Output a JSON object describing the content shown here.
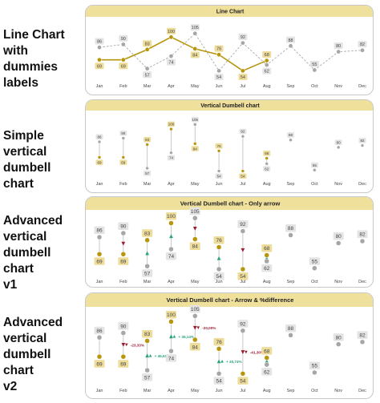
{
  "labels": [
    "Line Chart\nwith dummies\nlabels",
    "Simple vertical\ndumbell chart",
    "Advanced\nvertical\ndumbell chart\nv1",
    "Advanced\nvertical\ndumbell chart\nv2"
  ],
  "colors": {
    "gold": "#b8960c",
    "gold_fill": "#eddc9a",
    "gray": "#a6a6a6",
    "gray_fill": "#e4e4e4",
    "header_fill": "#efe09c",
    "up": "#2aa37a",
    "down": "#9b1c31"
  },
  "chart_data": [
    {
      "type": "line",
      "title": "Line Chart",
      "categories": [
        "Jan",
        "Feb",
        "Mar",
        "Apr",
        "May",
        "Jun",
        "Jul",
        "Aug",
        "Sep",
        "Oct",
        "Nov",
        "Dec"
      ],
      "series": [
        {
          "values": [
            69,
            69,
            83,
            100,
            84,
            76,
            54,
            68,
            null,
            null,
            null,
            null
          ]
        },
        {
          "values": [
            86,
            90,
            57,
            74,
            105,
            54,
            92,
            62,
            88,
            55,
            80,
            82
          ]
        }
      ]
    },
    {
      "type": "dumbbell",
      "title": "Vertical Dumbell chart",
      "categories": [
        "Jan",
        "Feb",
        "Mar",
        "Apr",
        "May",
        "Jun",
        "Jul",
        "Aug",
        "Sep",
        "Oct",
        "Nov",
        "Dec"
      ],
      "series": [
        {
          "values": [
            69,
            69,
            83,
            100,
            84,
            76,
            54,
            68,
            null,
            null,
            null,
            null
          ]
        },
        {
          "values": [
            86,
            90,
            57,
            74,
            105,
            54,
            92,
            62,
            88,
            55,
            80,
            82
          ]
        }
      ]
    },
    {
      "type": "dumbbell",
      "title": "Vertical Dumbell chart - Only arrow",
      "categories": [
        "Jan",
        "Feb",
        "Mar",
        "Apr",
        "May",
        "Jun",
        "Jul",
        "Aug",
        "Sep",
        "Oct",
        "Nov",
        "Dec"
      ],
      "series": [
        {
          "values": [
            69,
            69,
            83,
            100,
            84,
            76,
            54,
            68,
            null,
            null,
            null,
            null
          ]
        },
        {
          "values": [
            86,
            90,
            57,
            74,
            105,
            54,
            92,
            62,
            88,
            55,
            80,
            82
          ]
        }
      ]
    },
    {
      "type": "dumbbell",
      "title": "Vertical Dumbell chart - Arrow & %difference",
      "categories": [
        "Jan",
        "Feb",
        "Mar",
        "Apr",
        "May",
        "Jun",
        "Jul",
        "Aug",
        "Sep",
        "Oct",
        "Nov",
        "Dec"
      ],
      "series": [
        {
          "values": [
            69,
            69,
            83,
            100,
            84,
            76,
            54,
            68,
            null,
            null,
            null,
            null
          ]
        },
        {
          "values": [
            86,
            90,
            57,
            74,
            105,
            54,
            92,
            62,
            88,
            55,
            80,
            82
          ]
        }
      ],
      "annotations": [
        {
          "month": "Feb",
          "text": "-23,33%",
          "direction": "down"
        },
        {
          "month": "Mar",
          "text": "+ 45,61%",
          "direction": "up"
        },
        {
          "month": "Apr",
          "text": "+ 35,14%",
          "direction": "up"
        },
        {
          "month": "May",
          "text": "-20,00%",
          "direction": "down"
        },
        {
          "month": "Jun",
          "text": "+ 40,74%",
          "direction": "up"
        },
        {
          "month": "Jul",
          "text": "-41,30%",
          "direction": "down"
        }
      ]
    }
  ]
}
